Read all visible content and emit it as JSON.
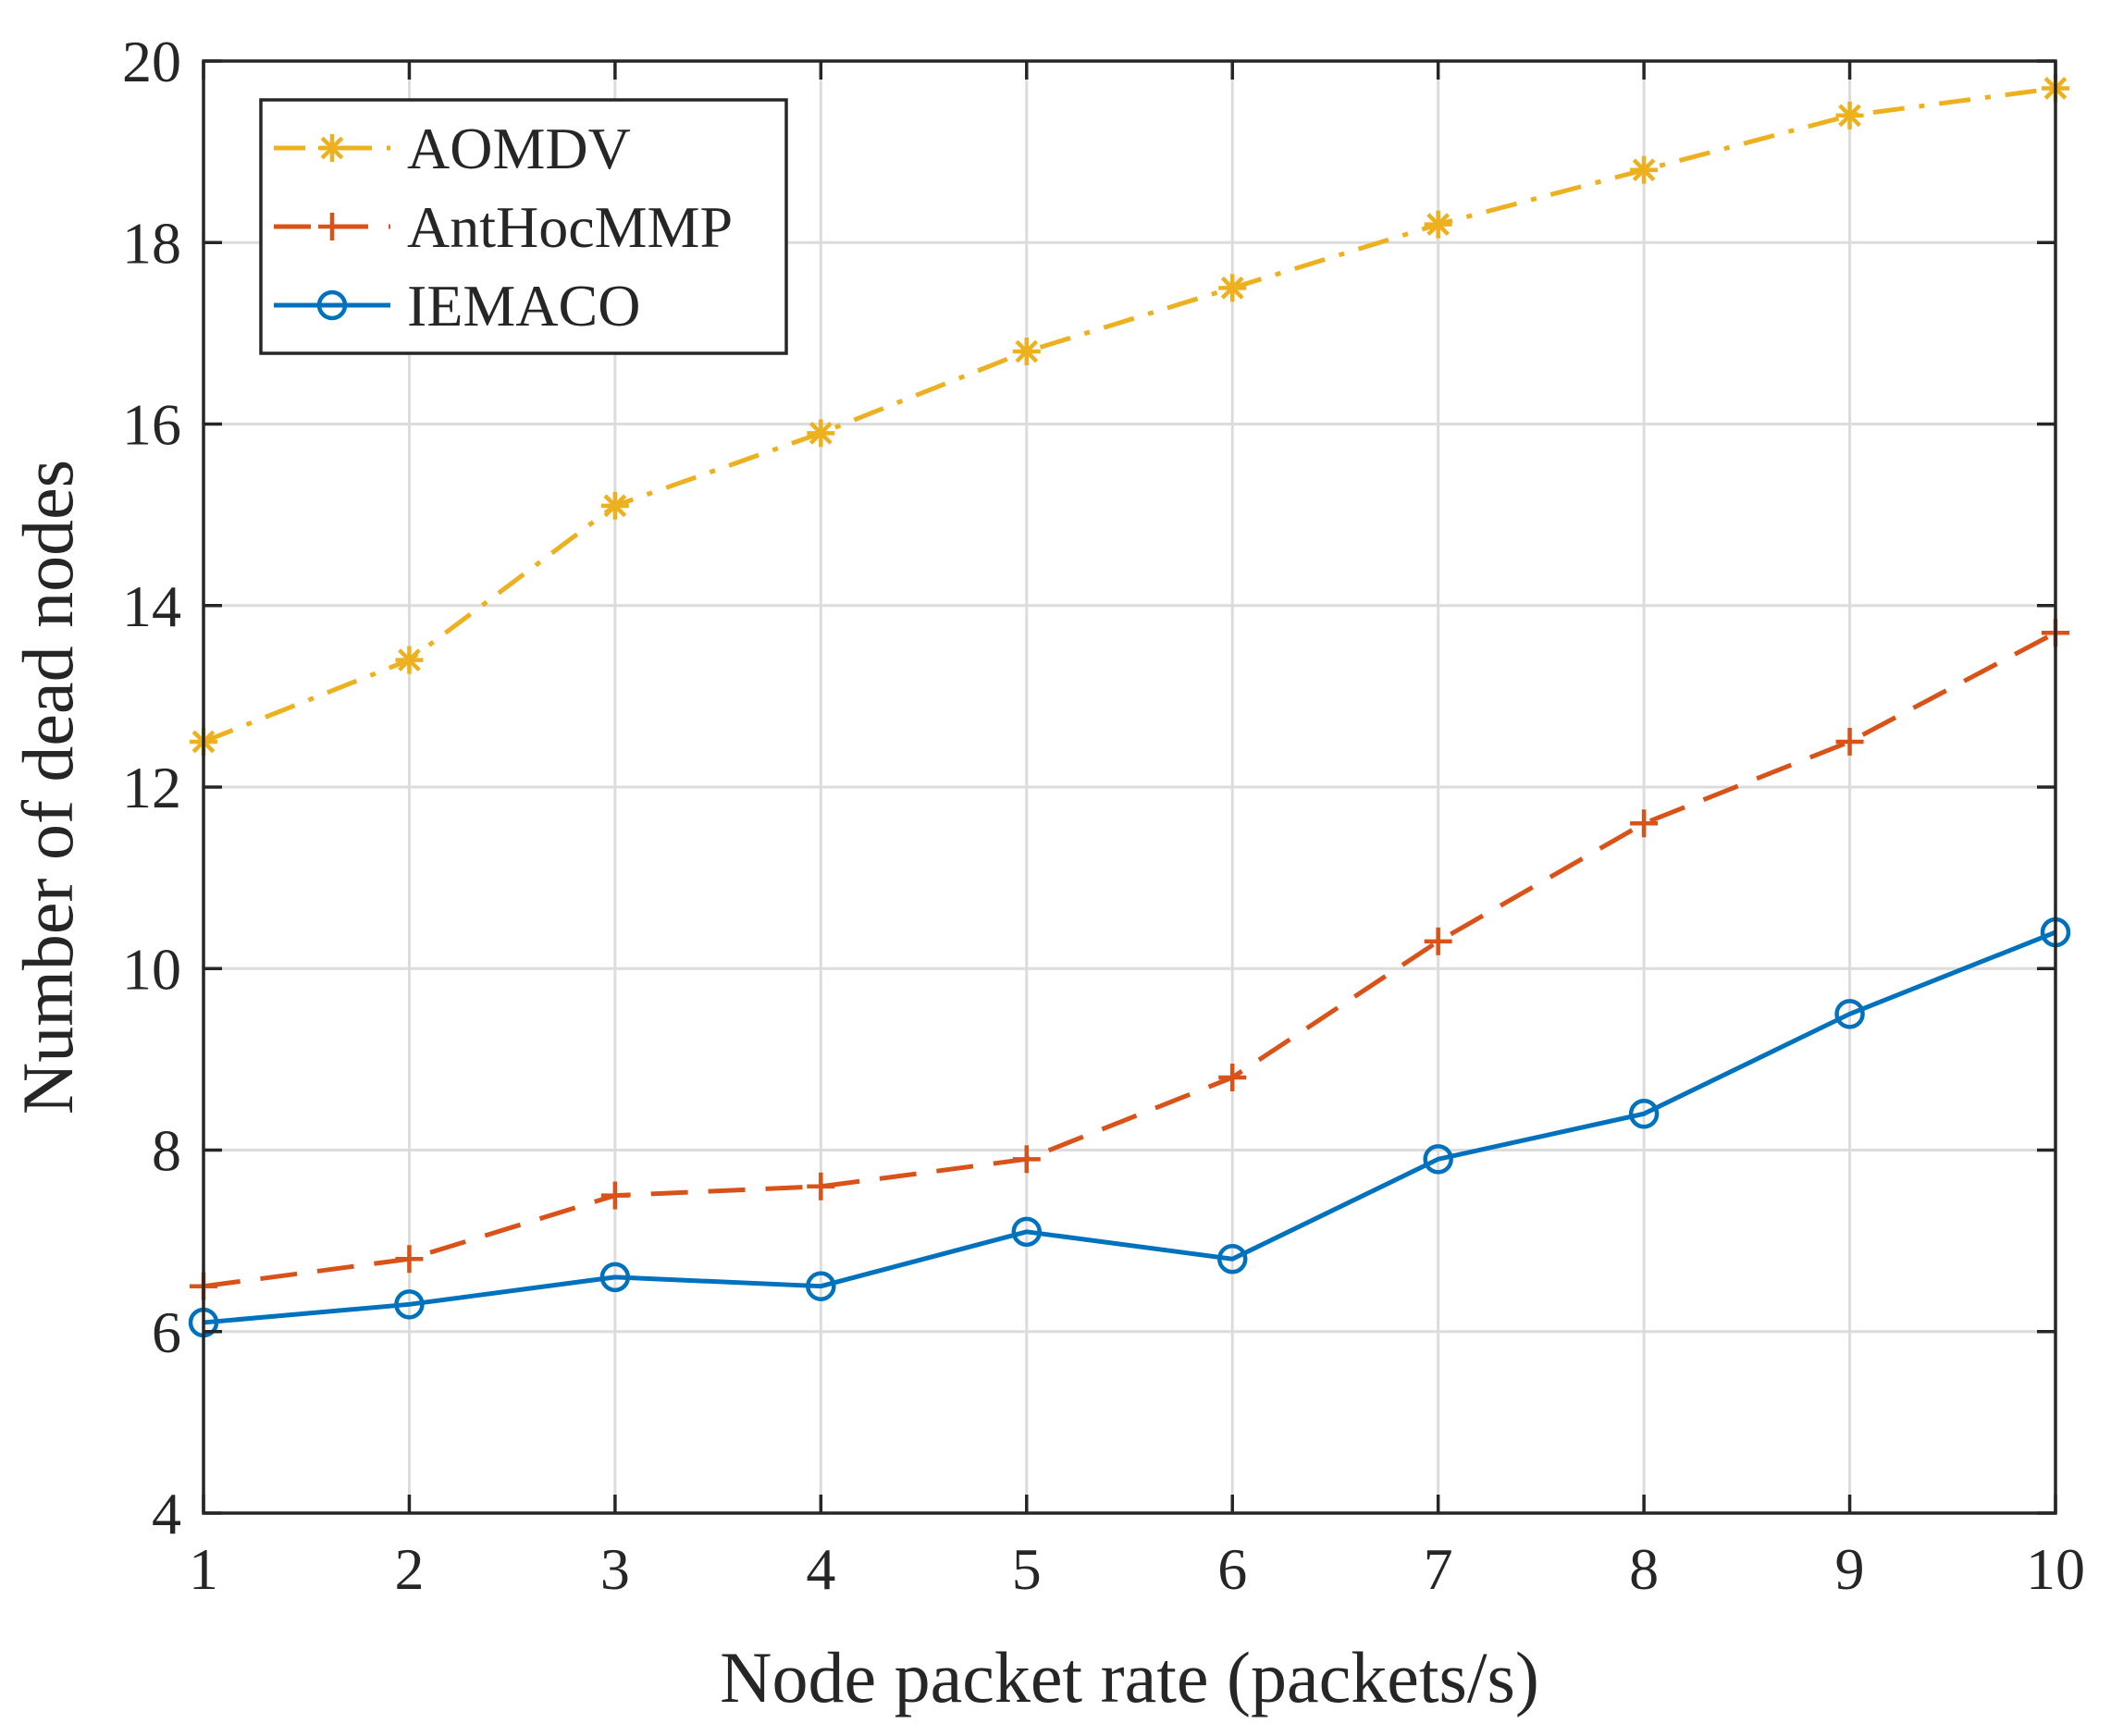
{
  "chart_data": {
    "type": "line",
    "title": "",
    "xlabel": "Node packet rate (packets/s)",
    "ylabel": "Number of dead nodes",
    "x": [
      1,
      2,
      3,
      4,
      5,
      6,
      7,
      8,
      9,
      10
    ],
    "xlim": [
      1,
      10
    ],
    "ylim": [
      4,
      20
    ],
    "xticks": [
      1,
      2,
      3,
      4,
      5,
      6,
      7,
      8,
      9,
      10
    ],
    "yticks": [
      4,
      6,
      8,
      10,
      12,
      14,
      16,
      18,
      20
    ],
    "grid": true,
    "legend_position": "top-left",
    "series": [
      {
        "name": "AOMDV",
        "color": "#EDB120",
        "line_style": "dash-dot",
        "marker": "asterisk",
        "values": [
          12.5,
          13.4,
          15.1,
          15.9,
          16.8,
          17.5,
          18.2,
          18.8,
          19.4,
          19.7
        ]
      },
      {
        "name": "AntHocMMP",
        "color": "#D95319",
        "line_style": "dashed",
        "marker": "plus",
        "values": [
          6.5,
          6.8,
          7.5,
          7.6,
          7.9,
          8.8,
          10.3,
          11.6,
          12.5,
          13.7
        ]
      },
      {
        "name": "IEMACO",
        "color": "#0072BD",
        "line_style": "solid",
        "marker": "circle",
        "values": [
          6.1,
          6.3,
          6.6,
          6.5,
          7.1,
          6.8,
          7.9,
          8.4,
          9.5,
          10.4
        ]
      }
    ]
  }
}
